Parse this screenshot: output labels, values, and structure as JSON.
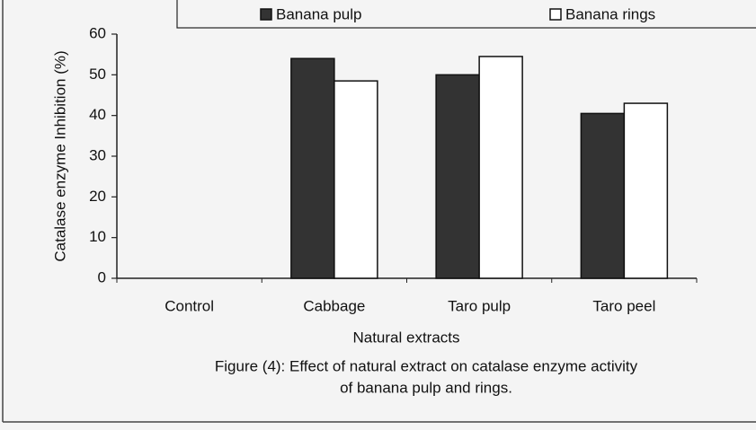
{
  "chart_data": {
    "type": "bar",
    "y_label": "Catalase enzyme Inhibition (%)",
    "x_label": "Natural extracts",
    "caption": [
      "Figure (4): Effect of natural extract on catalase enzyme activity",
      "of banana pulp and rings."
    ],
    "categories": [
      "Control",
      "Cabbage",
      "Taro pulp",
      "Taro peel"
    ],
    "series": [
      {
        "name": "Banana pulp",
        "color": "#333333",
        "values": [
          0,
          54,
          50,
          40.5
        ]
      },
      {
        "name": "Banana rings",
        "color": "#ffffff",
        "values": [
          0,
          48.5,
          54.5,
          43
        ]
      }
    ],
    "ylim": [
      0,
      60
    ],
    "yticks": [
      0,
      10,
      20,
      30,
      40,
      50,
      60
    ],
    "legend": "top",
    "grid": false
  }
}
